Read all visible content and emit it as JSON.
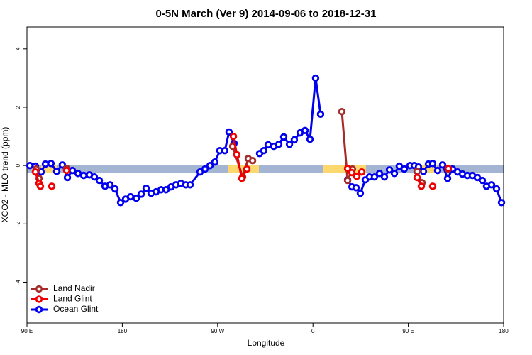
{
  "chart_data": {
    "type": "line",
    "title": "0-5N March (Ver 9)   2014-09-06 to 2018-12-31",
    "xlabel": "Longitude",
    "ylabel": "XCO2 - MLO trend (ppm)",
    "xlim": [
      90,
      540
    ],
    "ylim": [
      -5.4,
      4.75
    ],
    "xticks": [
      {
        "value": 90,
        "label": "90 E"
      },
      180,
      {
        "value": 270,
        "label": "90 W"
      },
      {
        "value": 360,
        "label": "0"
      },
      {
        "value": 450,
        "label": "90 E"
      },
      {
        "value": 540,
        "label": "180"
      }
    ],
    "yticks": [
      -4,
      -2,
      0,
      2,
      4
    ],
    "legend": "bottom-left",
    "series": [
      {
        "name": "Ocean Glint",
        "color": "#0000ee",
        "x": [
          92.7,
          98.0,
          103.4,
          107.4,
          112.7,
          118.1,
          123.4,
          128.2,
          132.9,
          138.2,
          143.6,
          148.9,
          153.6,
          158.3,
          163.7,
          168.4,
          173.1,
          178.4,
          183.1,
          187.8,
          193.2,
          197.8,
          202.5,
          207.2,
          211.9,
          216.6,
          221.3,
          226.0,
          230.7,
          235.3,
          240.0,
          244.0,
          253.4,
          258.1,
          262.8,
          267.4,
          272.1,
          276.8,
          280.8,
          285.5,
          null,
          309.6,
          313.6,
          317.7,
          323.0,
          327.7,
          332.4,
          337.8,
          342.4,
          347.8,
          352.5,
          357.2,
          362.5,
          367.2,
          null,
          392.7,
          396.8,
          400.7,
          404.7,
          409.4,
          413.4,
          418.1,
          422.8,
          427.5,
          432.2,
          436.9,
          441.5,
          446.2,
          451.6,
          455.6,
          459.6,
          464.3,
          469.0,
          473.0,
          477.7,
          482.4,
          487.1,
          491.8,
          496.5,
          501.1,
          505.8,
          510.5,
          515.2,
          519.9,
          523.9,
          528.6,
          533.3,
          538.0
        ],
        "values": [
          0,
          -0.02,
          -0.22,
          0.05,
          0.07,
          -0.2,
          0.02,
          -0.41,
          -0.17,
          -0.27,
          -0.34,
          -0.32,
          -0.39,
          -0.51,
          -0.71,
          -0.66,
          -0.8,
          -1.27,
          -1.15,
          -1.07,
          -1.12,
          -0.98,
          -0.78,
          -0.95,
          -0.9,
          -0.83,
          -0.83,
          -0.73,
          -0.66,
          -0.61,
          -0.66,
          -0.66,
          -0.22,
          -0.12,
          0,
          0.12,
          0.51,
          0.51,
          1.15,
          0.76,
          null,
          0.41,
          0.51,
          0.71,
          0.66,
          0.73,
          0.98,
          0.73,
          0.88,
          1.12,
          1.2,
          0.9,
          3.0,
          1.76,
          null,
          -0.49,
          -0.73,
          -0.76,
          -0.95,
          -0.49,
          -0.39,
          -0.39,
          -0.27,
          -0.39,
          -0.15,
          -0.27,
          -0.02,
          -0.12,
          0,
          0,
          -0.05,
          -0.2,
          0.05,
          0.07,
          -0.17,
          0.02,
          -0.44,
          -0.12,
          -0.22,
          -0.29,
          -0.34,
          -0.34,
          -0.41,
          -0.51,
          -0.71,
          -0.66,
          -0.8,
          -1.27
        ]
      },
      {
        "name": "Land Nadir",
        "color": "#a52a2a",
        "x": [
          98.7,
          101.4,
          null,
          127.5,
          null,
          284.2,
          293.6,
          298.9,
          303.0,
          null,
          387.3,
          392.7,
          397.3,
          null,
          458.3,
          463.0,
          null,
          487.7
        ],
        "values": [
          -0.12,
          -0.44,
          null,
          -0.1,
          null,
          0.66,
          -0.39,
          0.24,
          0.17,
          null,
          1.85,
          -0.51,
          -0.12,
          null,
          -0.2,
          -0.59,
          null,
          -0.12
        ]
      },
      {
        "name": "Land Glint",
        "color": "#ee0000",
        "x": [
          98.0,
          101.4,
          102.7,
          null,
          113.4,
          null,
          127.5,
          null,
          284.9,
          288.2,
          292.9,
          297.6,
          null,
          392.7,
          396.7,
          401.4,
          406.1,
          null,
          458.3,
          462.3,
          null,
          473.0,
          null,
          487.7
        ],
        "values": [
          -0.22,
          -0.61,
          -0.71,
          null,
          -0.71,
          null,
          -0.17,
          null,
          1.0,
          0.37,
          -0.44,
          -0.12,
          null,
          -0.1,
          -0.24,
          -0.37,
          -0.22,
          null,
          -0.41,
          -0.71,
          null,
          -0.71,
          null,
          -0.1
        ]
      }
    ]
  }
}
